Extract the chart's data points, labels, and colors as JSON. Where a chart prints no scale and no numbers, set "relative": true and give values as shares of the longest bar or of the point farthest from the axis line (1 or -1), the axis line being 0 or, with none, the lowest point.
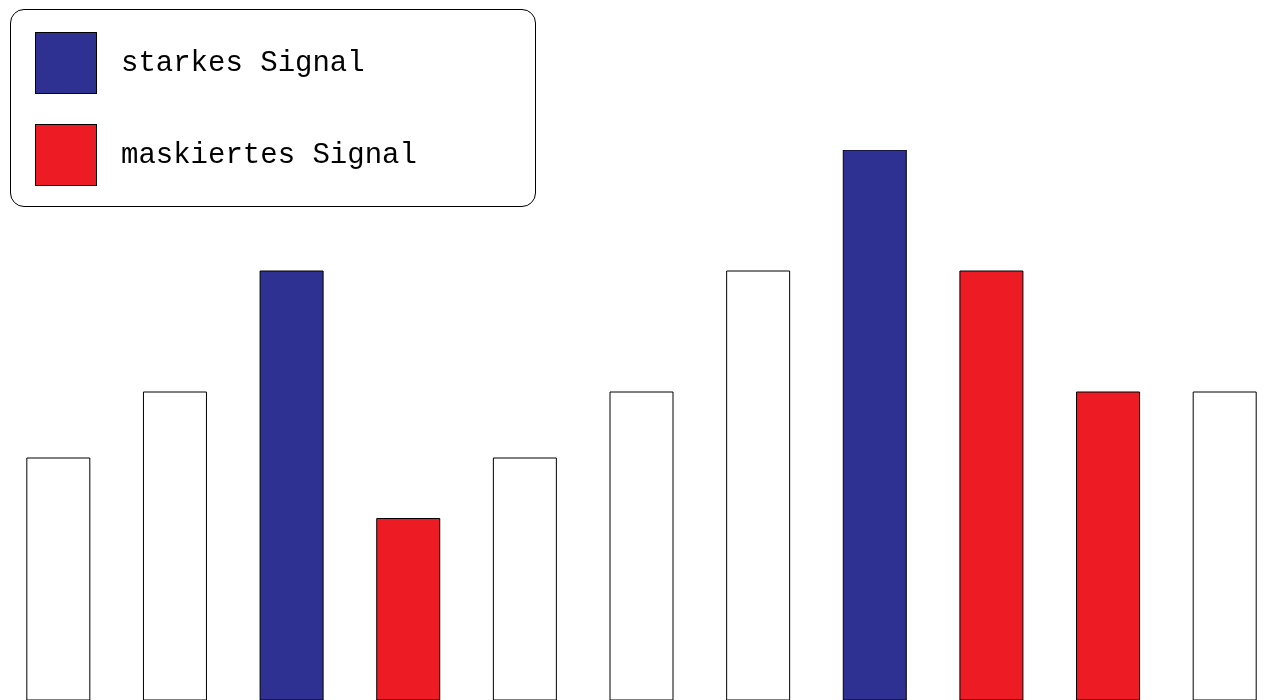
{
  "chart_data": {
    "type": "bar",
    "relative": true,
    "categories": [
      null,
      null,
      null,
      null,
      null,
      null,
      null,
      null,
      null,
      null,
      null
    ],
    "series": [
      {
        "color": "#ffffff",
        "values": [
          0.44,
          0.56,
          null,
          null,
          0.44,
          0.56,
          0.78,
          null,
          null,
          null,
          0.56
        ]
      },
      {
        "name": "starkes Signal",
        "color": "#2e3192",
        "values": [
          null,
          null,
          0.78,
          null,
          null,
          null,
          null,
          1,
          null,
          null,
          null
        ]
      },
      {
        "name": "maskiertes Signal",
        "color": "#ed1c24",
        "values": [
          null,
          null,
          null,
          0.33,
          null,
          null,
          null,
          null,
          0.78,
          0.56,
          null
        ]
      }
    ],
    "stacked": true,
    "legend": "top left",
    "grid": false
  }
}
